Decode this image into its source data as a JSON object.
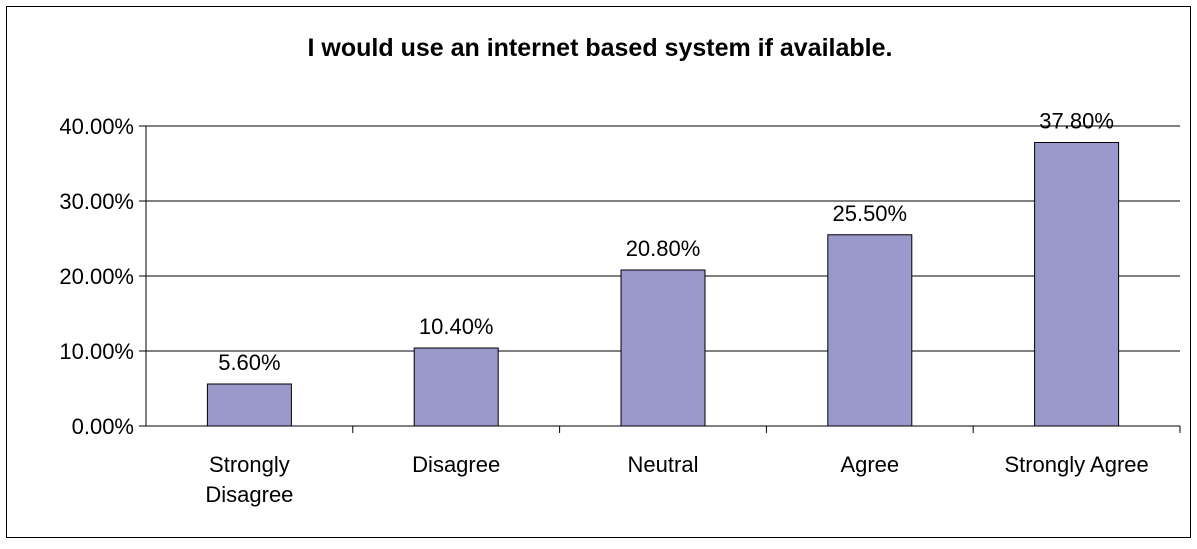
{
  "chart_data": {
    "type": "bar",
    "title": "I would use an internet based system if available.",
    "categories": [
      "Strongly Disagree",
      "Disagree",
      "Neutral",
      "Agree",
      "Strongly Agree"
    ],
    "category_lines": [
      [
        "Strongly",
        "Disagree"
      ],
      [
        "Disagree"
      ],
      [
        "Neutral"
      ],
      [
        "Agree"
      ],
      [
        "Strongly Agree"
      ]
    ],
    "values": [
      5.6,
      10.4,
      20.8,
      25.5,
      37.8
    ],
    "data_labels": [
      "5.60%",
      "10.40%",
      "20.80%",
      "25.50%",
      "37.80%"
    ],
    "ylim": [
      0,
      40
    ],
    "yticks": [
      0,
      10,
      20,
      30,
      40
    ],
    "ytick_labels": [
      "0.00%",
      "10.00%",
      "20.00%",
      "30.00%",
      "40.00%"
    ],
    "xlabel": "",
    "ylabel": "",
    "grid": true,
    "legend": "none",
    "bar_color": "#9999cc",
    "bar_edge_color": "#000000",
    "grid_color": "#000000"
  }
}
